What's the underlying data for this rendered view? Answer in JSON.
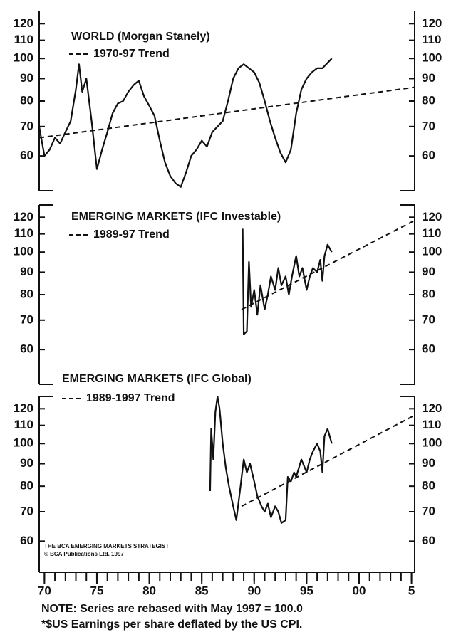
{
  "chart_data": [
    {
      "type": "line",
      "title": "WORLD (Morgan Stanely)",
      "log_y": true,
      "xlim": [
        1969.5,
        2005.3
      ],
      "ylim": [
        50,
        128
      ],
      "yticks": [
        60,
        70,
        80,
        90,
        100,
        110,
        120
      ],
      "series": [
        {
          "color": "#111111",
          "x": [
            1969.5,
            1970,
            1970.5,
            1971,
            1971.5,
            1972,
            1972.5,
            1973,
            1973.3,
            1973.6,
            1974,
            1974.5,
            1975,
            1975.5,
            1976,
            1976.5,
            1977,
            1977.5,
            1978,
            1978.5,
            1979,
            1979.5,
            1980,
            1980.5,
            1981,
            1981.5,
            1982,
            1982.5,
            1983,
            1983.5,
            1984,
            1984.5,
            1985,
            1985.5,
            1986,
            1986.5,
            1987,
            1987.5,
            1988,
            1988.5,
            1989,
            1989.5,
            1990,
            1990.5,
            1991,
            1991.5,
            1992,
            1992.5,
            1993,
            1993.5,
            1994,
            1994.5,
            1995,
            1995.5,
            1996,
            1996.5,
            1997.4
          ],
          "values": [
            70,
            60,
            62,
            66,
            64,
            68,
            72,
            85,
            97,
            84,
            90,
            72,
            56,
            62,
            68,
            75,
            79,
            80,
            84,
            87,
            89,
            82,
            78,
            74,
            65,
            58,
            54,
            52,
            51,
            55,
            60,
            62,
            65,
            63,
            68,
            70,
            72,
            80,
            90,
            95,
            97,
            95,
            93,
            88,
            80,
            72,
            66,
            61,
            58,
            62,
            75,
            85,
            90,
            93,
            95,
            95,
            100
          ]
        },
        {
          "name": "1970-97 Trend",
          "color": "#111111",
          "dash": true,
          "x": [
            1969.5,
            2005.3
          ],
          "values": [
            66,
            86
          ]
        }
      ]
    },
    {
      "type": "line",
      "title": "EMERGING MARKETS (IFC Investable)",
      "log_y": true,
      "xlim": [
        1969.5,
        2005.3
      ],
      "ylim": [
        50,
        128
      ],
      "yticks": [
        60,
        70,
        80,
        90,
        100,
        110,
        120
      ],
      "series": [
        {
          "color": "#111111",
          "x": [
            1988.9,
            1989,
            1989.3,
            1989.5,
            1989.7,
            1990,
            1990.3,
            1990.6,
            1991,
            1991.3,
            1991.6,
            1992,
            1992.3,
            1992.6,
            1993,
            1993.3,
            1993.6,
            1994,
            1994.3,
            1994.6,
            1995,
            1995.3,
            1995.6,
            1996,
            1996.3,
            1996.5,
            1996.7,
            1997,
            1997.4
          ],
          "values": [
            113,
            65,
            66,
            95,
            75,
            82,
            72,
            84,
            74,
            80,
            88,
            82,
            92,
            84,
            88,
            80,
            88,
            98,
            88,
            92,
            82,
            88,
            92,
            90,
            96,
            86,
            98,
            104,
            100
          ]
        },
        {
          "name": "1989-97 Trend",
          "color": "#111111",
          "dash": true,
          "x": [
            1988.8,
            2005.3
          ],
          "values": [
            74,
            118
          ]
        }
      ]
    },
    {
      "type": "line",
      "title": "EMERGING MARKETS (IFC Global)",
      "log_y": true,
      "xlim": [
        1969.5,
        2005.3
      ],
      "ylim": [
        51,
        128
      ],
      "yticks": [
        60,
        70,
        80,
        90,
        100,
        110,
        120
      ],
      "xticks": [
        {
          "value": 1970,
          "label": "70"
        },
        {
          "value": 1975,
          "label": "75"
        },
        {
          "value": 1980,
          "label": "80"
        },
        {
          "value": 1985,
          "label": "85"
        },
        {
          "value": 1990,
          "label": "90"
        },
        {
          "value": 1995,
          "label": "95"
        },
        {
          "value": 2000,
          "label": "00"
        },
        {
          "value": 2005,
          "label": "5"
        }
      ],
      "xminorticks": [
        1970,
        1971,
        1972,
        1973,
        1974,
        1975,
        1976,
        1977,
        1978,
        1979,
        1980,
        1981,
        1982,
        1983,
        1984,
        1985,
        1986,
        1987,
        1988,
        1989,
        1990,
        1991,
        1992,
        1993,
        1994,
        1995,
        1996,
        1997,
        1998,
        1999,
        2000,
        2001,
        2002,
        2003,
        2004,
        2005
      ],
      "source": [
        "THE BCA EMERGING MARKETS STRATEGIST",
        "© BCA Publications Ltd. 1997"
      ],
      "series": [
        {
          "color": "#111111",
          "x": [
            1985.8,
            1985.9,
            1986.1,
            1986.3,
            1986.5,
            1986.7,
            1987,
            1987.3,
            1987.6,
            1988,
            1988.3,
            1988.7,
            1989,
            1989.3,
            1989.6,
            1990,
            1990.3,
            1990.7,
            1991,
            1991.3,
            1991.6,
            1992,
            1992.3,
            1992.6,
            1993,
            1993.2,
            1993.5,
            1993.8,
            1994,
            1994.5,
            1995,
            1995.3,
            1995.6,
            1996,
            1996.3,
            1996.5,
            1996.7,
            1997,
            1997.4
          ],
          "values": [
            78,
            108,
            92,
            118,
            128,
            120,
            100,
            88,
            80,
            72,
            67,
            80,
            92,
            86,
            90,
            82,
            76,
            72,
            70,
            73,
            68,
            72,
            70,
            66,
            67,
            84,
            82,
            86,
            84,
            92,
            86,
            92,
            96,
            100,
            96,
            86,
            104,
            108,
            100
          ]
        },
        {
          "name": "1989-1997 Trend",
          "color": "#111111",
          "dash": true,
          "x": [
            1988.8,
            2005.3
          ],
          "values": [
            72,
            116
          ]
        }
      ]
    }
  ],
  "notes": [
    "NOTE: Series are rebased with May 1997 = 100.0",
    "*$US Earnings per share deflated by the US CPI."
  ]
}
